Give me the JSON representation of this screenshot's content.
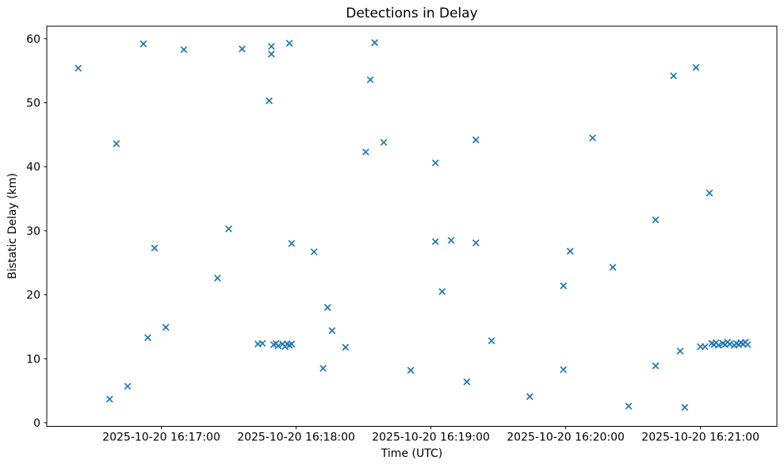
{
  "figure": {
    "background_color": "#ffffff"
  },
  "chart_data": {
    "type": "scatter",
    "title": "Detections in Delay",
    "xlabel": "Time (UTC)",
    "ylabel": "Bistatic Delay (km)",
    "legend": "none",
    "grid": false,
    "marker": {
      "style": "x",
      "color": "#1f77b4"
    },
    "x_axis": {
      "lim": [
        "16:16:09",
        "16:21:34"
      ],
      "ticks": [
        {
          "time": "16:17:00",
          "label": "2025-10-20 16:17:00"
        },
        {
          "time": "16:18:00",
          "label": "2025-10-20 16:18:00"
        },
        {
          "time": "16:19:00",
          "label": "2025-10-20 16:19:00"
        },
        {
          "time": "16:20:00",
          "label": "2025-10-20 16:20:00"
        },
        {
          "time": "16:21:00",
          "label": "2025-10-20 16:21:00"
        }
      ]
    },
    "y_axis": {
      "lim": [
        -0.56,
        61.96
      ],
      "ticks": [
        0,
        10,
        20,
        30,
        40,
        50,
        60
      ]
    },
    "points": [
      [
        "16:16:23",
        55.4
      ],
      [
        "16:16:37",
        3.7
      ],
      [
        "16:16:40",
        43.6
      ],
      [
        "16:16:45",
        5.7
      ],
      [
        "16:16:52",
        59.2
      ],
      [
        "16:16:54",
        13.3
      ],
      [
        "16:16:57",
        27.3
      ],
      [
        "16:17:02",
        14.9
      ],
      [
        "16:17:10",
        58.3
      ],
      [
        "16:17:25",
        22.6
      ],
      [
        "16:17:30",
        30.3
      ],
      [
        "16:17:36",
        58.4
      ],
      [
        "16:17:43",
        12.3
      ],
      [
        "16:17:45",
        12.4
      ],
      [
        "16:17:48",
        50.3
      ],
      [
        "16:17:49",
        58.8
      ],
      [
        "16:17:49",
        57.6
      ],
      [
        "16:17:50",
        12.2
      ],
      [
        "16:17:51",
        12.4
      ],
      [
        "16:17:52",
        12.0
      ],
      [
        "16:17:54",
        12.3
      ],
      [
        "16:17:55",
        11.9
      ],
      [
        "16:17:56",
        12.3
      ],
      [
        "16:17:57",
        12.1
      ],
      [
        "16:17:58",
        12.3
      ],
      [
        "16:17:57",
        59.3
      ],
      [
        "16:17:58",
        28.0
      ],
      [
        "16:18:08",
        26.7
      ],
      [
        "16:18:12",
        8.5
      ],
      [
        "16:18:14",
        18.0
      ],
      [
        "16:18:16",
        14.4
      ],
      [
        "16:18:22",
        11.8
      ],
      [
        "16:18:31",
        42.3
      ],
      [
        "16:18:33",
        53.6
      ],
      [
        "16:18:35",
        59.4
      ],
      [
        "16:18:39",
        43.8
      ],
      [
        "16:18:51",
        8.2
      ],
      [
        "16:19:02",
        28.3
      ],
      [
        "16:19:02",
        40.6
      ],
      [
        "16:19:05",
        20.5
      ],
      [
        "16:19:09",
        28.5
      ],
      [
        "16:19:16",
        6.4
      ],
      [
        "16:19:20",
        44.2
      ],
      [
        "16:19:20",
        28.1
      ],
      [
        "16:19:27",
        12.8
      ],
      [
        "16:19:44",
        4.1
      ],
      [
        "16:19:59",
        21.4
      ],
      [
        "16:19:59",
        8.3
      ],
      [
        "16:20:02",
        26.8
      ],
      [
        "16:20:12",
        44.5
      ],
      [
        "16:20:21",
        24.3
      ],
      [
        "16:20:28",
        2.6
      ],
      [
        "16:20:40",
        31.7
      ],
      [
        "16:20:40",
        8.9
      ],
      [
        "16:20:48",
        54.2
      ],
      [
        "16:20:51",
        11.2
      ],
      [
        "16:20:53",
        2.4
      ],
      [
        "16:20:58",
        55.5
      ],
      [
        "16:21:00",
        11.9
      ],
      [
        "16:21:02",
        11.9
      ],
      [
        "16:21:04",
        35.9
      ],
      [
        "16:21:05",
        12.4
      ],
      [
        "16:21:06",
        12.2
      ],
      [
        "16:21:07",
        12.5
      ],
      [
        "16:21:08",
        12.1
      ],
      [
        "16:21:10",
        12.4
      ],
      [
        "16:21:11",
        12.2
      ],
      [
        "16:21:12",
        12.6
      ],
      [
        "16:21:13",
        12.3
      ],
      [
        "16:21:15",
        12.1
      ],
      [
        "16:21:16",
        12.4
      ],
      [
        "16:21:17",
        12.2
      ],
      [
        "16:21:18",
        12.5
      ],
      [
        "16:21:19",
        12.3
      ],
      [
        "16:21:20",
        12.6
      ],
      [
        "16:21:21",
        12.2
      ]
    ]
  }
}
